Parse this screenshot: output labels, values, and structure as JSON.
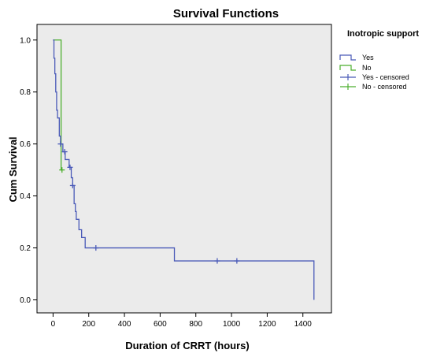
{
  "chart_data": {
    "type": "line",
    "title": "Survival Functions",
    "xlabel": "Duration of CRRT (hours)",
    "ylabel": "Cum Survival",
    "xlim": [
      -90,
      1560
    ],
    "ylim": [
      -0.05,
      1.06
    ],
    "xticks": [
      0,
      200,
      400,
      600,
      800,
      1000,
      1200,
      1400
    ],
    "yticks": [
      0.0,
      0.2,
      0.4,
      0.6,
      0.8,
      1.0
    ],
    "ytick_labels": [
      "0.0",
      "0.2",
      "0.4",
      "0.6",
      "0.8",
      "1.0"
    ],
    "grid": false,
    "plot_background": "#ebebeb",
    "legend": {
      "title": "Inotropic support",
      "position": "right",
      "entries": [
        {
          "label": "Yes",
          "kind": "step",
          "color": "#4a5ab8"
        },
        {
          "label": "No",
          "kind": "step",
          "color": "#4caf2e"
        },
        {
          "label": "Yes - censored",
          "kind": "censor",
          "color": "#4a5ab8"
        },
        {
          "label": "No - censored",
          "kind": "censor",
          "color": "#4caf2e"
        }
      ]
    },
    "series": [
      {
        "name": "Yes",
        "color": "#4a5ab8",
        "steps": [
          [
            0,
            1.0
          ],
          [
            5,
            0.93
          ],
          [
            10,
            0.87
          ],
          [
            15,
            0.8
          ],
          [
            20,
            0.73
          ],
          [
            25,
            0.7
          ],
          [
            35,
            0.63
          ],
          [
            42,
            0.6
          ],
          [
            55,
            0.57
          ],
          [
            68,
            0.54
          ],
          [
            90,
            0.51
          ],
          [
            102,
            0.47
          ],
          [
            110,
            0.44
          ],
          [
            118,
            0.37
          ],
          [
            125,
            0.34
          ],
          [
            130,
            0.31
          ],
          [
            145,
            0.27
          ],
          [
            160,
            0.24
          ],
          [
            180,
            0.2
          ],
          [
            680,
            0.15
          ],
          [
            1462,
            0.0
          ]
        ],
        "end_x": 1462,
        "censored": [
          [
            42,
            0.6
          ],
          [
            65,
            0.57
          ],
          [
            95,
            0.51
          ],
          [
            110,
            0.44
          ],
          [
            240,
            0.2
          ],
          [
            920,
            0.15
          ],
          [
            1030,
            0.15
          ]
        ]
      },
      {
        "name": "No",
        "color": "#4caf2e",
        "steps": [
          [
            0,
            1.0
          ],
          [
            45,
            0.5
          ]
        ],
        "end_x": 50,
        "censored": [
          [
            50,
            0.5
          ]
        ]
      }
    ]
  }
}
